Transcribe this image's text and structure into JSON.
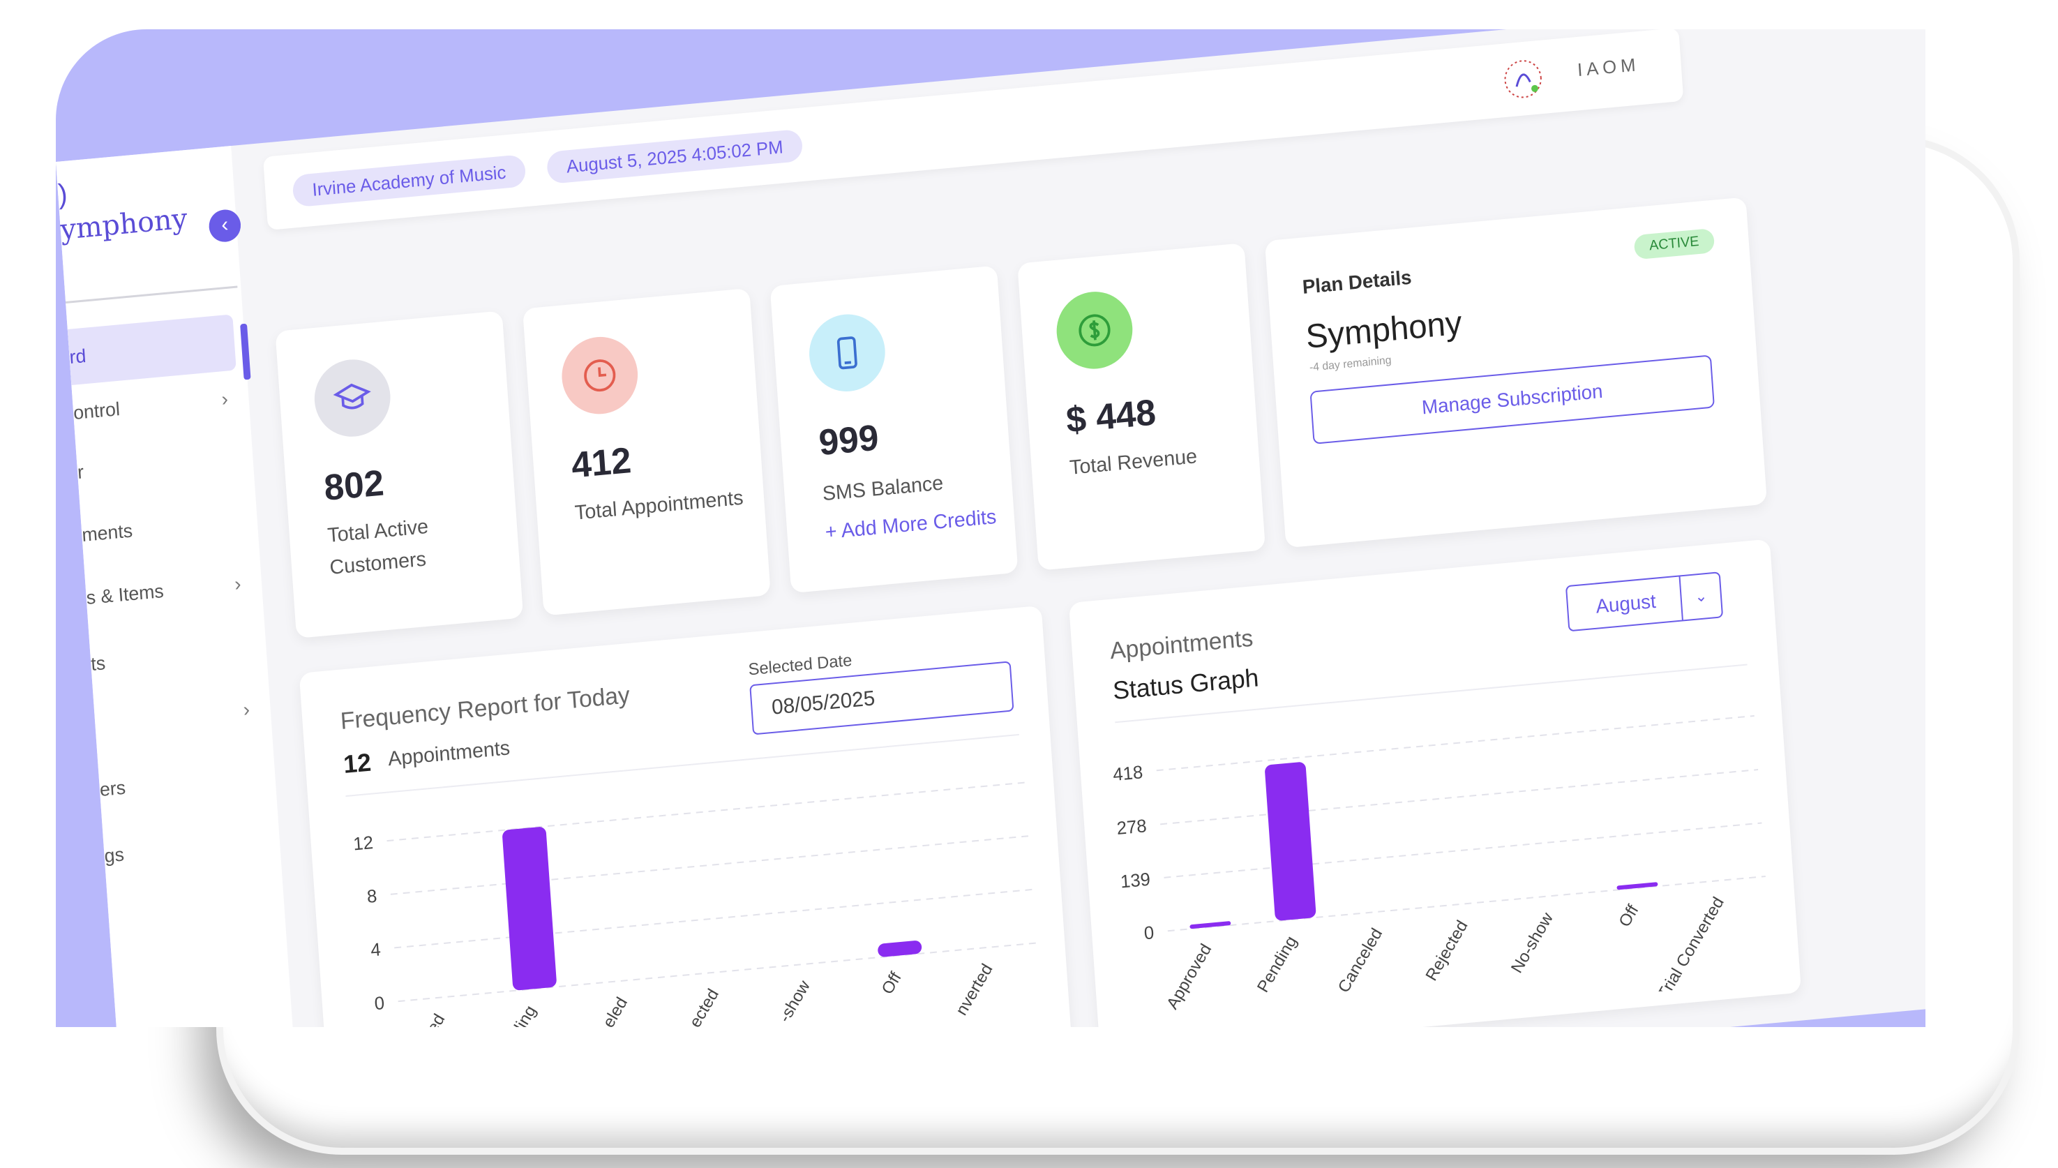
{
  "sidebar": {
    "brand_mark": ")",
    "brand_name": "ymphony",
    "items": [
      {
        "label": "rd",
        "active": true
      },
      {
        "label": "ontrol",
        "chevron": "›"
      },
      {
        "label": "r"
      },
      {
        "label": "ments"
      },
      {
        "label": "s & Items",
        "chevron": "›"
      },
      {
        "label": "ts"
      },
      {
        "label": "",
        "chevron": "›"
      },
      {
        "label": "ers"
      },
      {
        "label": "gs"
      }
    ],
    "collapse_icon": "‹"
  },
  "topbar": {
    "school_chip": "Irvine Academy of Music",
    "datetime_chip": "August 5, 2025 4:05:02 PM",
    "logo_text": "IAOM"
  },
  "stats": [
    {
      "value": "802",
      "label": "Total Active Customers",
      "icon": "graduation-cap-icon",
      "icon_bg": "#e3e3ea",
      "icon_color": "#6a5ce8"
    },
    {
      "value": "412",
      "label": "Total Appointments",
      "icon": "clock-icon",
      "icon_bg": "#f8c9c4",
      "icon_color": "#e35d4f"
    },
    {
      "value": "999",
      "label": "SMS Balance",
      "icon": "phone-icon",
      "icon_bg": "#c8effa",
      "icon_color": "#3b6fd0",
      "add_more": "+ Add More Credits"
    },
    {
      "value": "$ 448",
      "label": "Total Revenue",
      "icon": "dollar-icon",
      "icon_bg": "#8fe27c",
      "icon_color": "#2e9d3a"
    }
  ],
  "plan": {
    "title": "Plan Details",
    "badge": "ACTIVE",
    "name": "Symphony",
    "remaining": "-4 day remaining",
    "manage_label": "Manage Subscription"
  },
  "frequency": {
    "title": "Frequency Report for Today",
    "count": "12",
    "count_label": "Appointments",
    "date_label": "Selected Date",
    "date_value": "08/05/2025"
  },
  "status_graph": {
    "title": "Appointments",
    "subtitle": "Status Graph",
    "month": "August"
  },
  "chart_data": [
    {
      "type": "bar",
      "categories": [
        "ed",
        "ding",
        "eled",
        "ected",
        "-show",
        "Off",
        "nverted"
      ],
      "values": [
        0,
        12,
        0,
        0,
        0,
        1,
        0
      ],
      "yticks": [
        0,
        4,
        8,
        12
      ],
      "ylim": [
        0,
        12
      ],
      "color": "#8a2cf0"
    },
    {
      "type": "bar",
      "categories": [
        "Approved",
        "Pending",
        "Canceled",
        "Rejected",
        "No-show",
        "Off",
        "Trial Converted"
      ],
      "values": [
        5,
        406,
        0,
        0,
        0,
        3,
        0
      ],
      "yticks": [
        0,
        139,
        278,
        418
      ],
      "ylim": [
        0,
        418
      ],
      "color": "#8a2cf0"
    }
  ]
}
